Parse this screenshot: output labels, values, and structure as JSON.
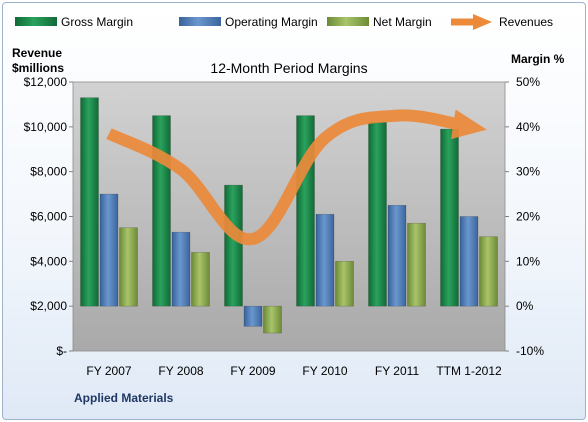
{
  "chart_data": {
    "type": "bar",
    "title": "12-Month Period Margins",
    "company": "Applied Materials",
    "categories": [
      "FY 2007",
      "FY 2008",
      "FY 2009",
      "FY 2010",
      "FY 2011",
      "TTM 1-2012"
    ],
    "left_axis": {
      "title_line1": "Revenue",
      "title_line2": "$millions",
      "min": 0,
      "max": 12000,
      "step": 2000,
      "tick_labels": [
        "$-",
        "$2,000",
        "$4,000",
        "$6,000",
        "$8,000",
        "$10,000",
        "$12,000"
      ]
    },
    "right_axis": {
      "title": "Margin %",
      "min": -10,
      "max": 50,
      "step": 10,
      "tick_labels": [
        "-10%",
        "0%",
        "10%",
        "20%",
        "30%",
        "40%",
        "50%"
      ]
    },
    "series": [
      {
        "name": "Gross Margin",
        "axis": "right",
        "color": "#1f8a4c",
        "values": [
          46.5,
          42.5,
          27,
          42.5,
          41,
          39.5
        ]
      },
      {
        "name": "Operating Margin",
        "axis": "right",
        "color": "#4f81bd",
        "values": [
          25,
          16.5,
          -4.5,
          20.5,
          22.5,
          20
        ]
      },
      {
        "name": "Net Margin",
        "axis": "right",
        "color": "#8aa84e",
        "values": [
          17.5,
          12,
          -6,
          10,
          18.5,
          15.5
        ]
      },
      {
        "name": "Revenues",
        "axis": "left",
        "type": "line",
        "color": "#ec8a3a",
        "values": [
          9700,
          8100,
          5000,
          9500,
          10500,
          10000
        ]
      }
    ],
    "legend_position": "top",
    "grid": false,
    "plot_background": "#b5b5b5"
  }
}
